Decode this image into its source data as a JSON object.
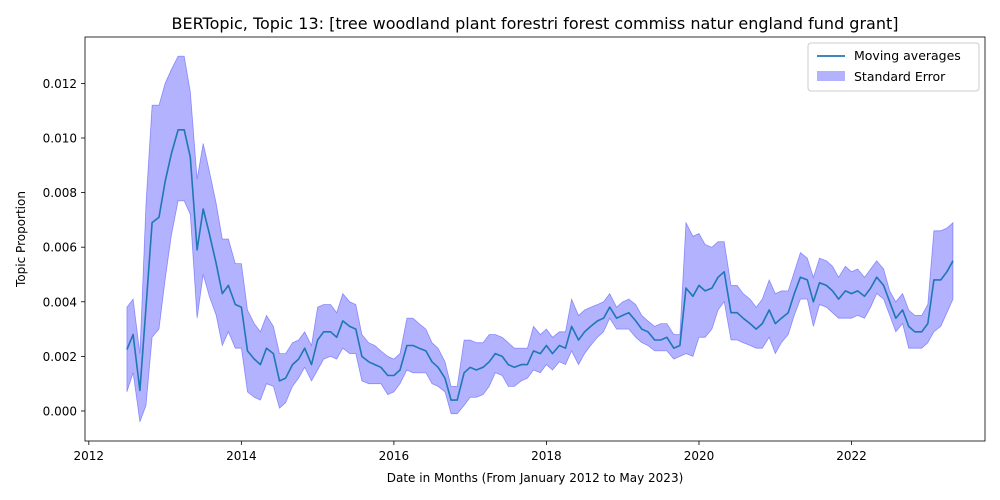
{
  "chart_data": {
    "type": "line",
    "title": "BERTopic, Topic 13: [tree woodland plant forestri forest commiss natur england fund grant]",
    "xlabel": "Date in Months (From January 2012 to May 2023)",
    "ylabel": "Topic Proportion",
    "xlim": [
      2011.95,
      2023.75
    ],
    "ylim": [
      -0.0011,
      0.0137
    ],
    "x_ticks": [
      2012,
      2014,
      2016,
      2018,
      2020,
      2022
    ],
    "x_tick_labels": [
      "2012",
      "2014",
      "2016",
      "2018",
      "2020",
      "2022"
    ],
    "y_ticks": [
      0.0,
      0.002,
      0.004,
      0.006,
      0.008,
      0.01,
      0.012
    ],
    "y_tick_labels": [
      "0.000",
      "0.002",
      "0.004",
      "0.006",
      "0.008",
      "0.010",
      "0.012"
    ],
    "legend": {
      "placement": "top-right",
      "entries": [
        "Moving averages",
        "Standard Error"
      ]
    },
    "colors": {
      "line": "#1f77b4",
      "band": "#0000ff",
      "band_alpha": 0.3
    },
    "x": [
      2012.5,
      2012.58,
      2012.67,
      2012.75,
      2012.83,
      2012.92,
      2013.0,
      2013.08,
      2013.17,
      2013.25,
      2013.33,
      2013.42,
      2013.5,
      2013.58,
      2013.67,
      2013.75,
      2013.83,
      2013.92,
      2014.0,
      2014.08,
      2014.17,
      2014.25,
      2014.33,
      2014.42,
      2014.5,
      2014.58,
      2014.67,
      2014.75,
      2014.83,
      2014.92,
      2015.0,
      2015.08,
      2015.17,
      2015.25,
      2015.33,
      2015.42,
      2015.5,
      2015.58,
      2015.67,
      2015.75,
      2015.83,
      2015.92,
      2016.0,
      2016.08,
      2016.17,
      2016.25,
      2016.33,
      2016.42,
      2016.5,
      2016.58,
      2016.67,
      2016.75,
      2016.83,
      2016.92,
      2017.0,
      2017.08,
      2017.17,
      2017.25,
      2017.33,
      2017.42,
      2017.5,
      2017.58,
      2017.67,
      2017.75,
      2017.83,
      2017.92,
      2018.0,
      2018.08,
      2018.17,
      2018.25,
      2018.33,
      2018.42,
      2018.5,
      2018.58,
      2018.67,
      2018.75,
      2018.83,
      2018.92,
      2019.0,
      2019.08,
      2019.17,
      2019.25,
      2019.33,
      2019.42,
      2019.5,
      2019.58,
      2019.67,
      2019.75,
      2019.83,
      2019.92,
      2020.0,
      2020.08,
      2020.17,
      2020.25,
      2020.33,
      2020.42,
      2020.5,
      2020.58,
      2020.67,
      2020.75,
      2020.83,
      2020.92,
      2021.0,
      2021.08,
      2021.17,
      2021.25,
      2021.33,
      2021.42,
      2021.5,
      2021.58,
      2021.67,
      2021.75,
      2021.83,
      2021.92,
      2022.0,
      2022.08,
      2022.17,
      2022.25,
      2022.33,
      2022.42,
      2022.5,
      2022.58,
      2022.67,
      2022.75,
      2022.83,
      2022.92,
      2023.0,
      2023.08,
      2023.17,
      2023.25,
      2023.33
    ],
    "series": [
      {
        "name": "Moving averages",
        "values": [
          0.00225,
          0.0028,
          0.00075,
          0.0038,
          0.0069,
          0.0071,
          0.0084,
          0.0094,
          0.0103,
          0.0103,
          0.0093,
          0.0059,
          0.0074,
          0.0065,
          0.0054,
          0.0043,
          0.0046,
          0.0039,
          0.0038,
          0.0022,
          0.0019,
          0.0017,
          0.0023,
          0.0021,
          0.0011,
          0.0012,
          0.0017,
          0.0019,
          0.0023,
          0.0017,
          0.0026,
          0.0029,
          0.0029,
          0.0027,
          0.0033,
          0.0031,
          0.003,
          0.002,
          0.0018,
          0.0017,
          0.0016,
          0.0013,
          0.0013,
          0.0015,
          0.0024,
          0.0024,
          0.0023,
          0.0022,
          0.0018,
          0.0016,
          0.0012,
          0.0004,
          0.0004,
          0.0014,
          0.0016,
          0.0015,
          0.0016,
          0.0018,
          0.0021,
          0.002,
          0.0017,
          0.0016,
          0.0017,
          0.0017,
          0.0022,
          0.0021,
          0.0024,
          0.0021,
          0.0024,
          0.0023,
          0.0031,
          0.0026,
          0.0029,
          0.0031,
          0.0033,
          0.0034,
          0.0038,
          0.0034,
          0.0035,
          0.0036,
          0.0033,
          0.003,
          0.0029,
          0.0026,
          0.0026,
          0.0027,
          0.0023,
          0.0024,
          0.0045,
          0.0042,
          0.0046,
          0.0044,
          0.0045,
          0.0049,
          0.0051,
          0.0036,
          0.0036,
          0.0034,
          0.0032,
          0.003,
          0.0032,
          0.0037,
          0.0032,
          0.0034,
          0.0036,
          0.0043,
          0.0049,
          0.0048,
          0.004,
          0.0047,
          0.0046,
          0.0044,
          0.0041,
          0.0044,
          0.0043,
          0.0044,
          0.0042,
          0.0045,
          0.0049,
          0.0046,
          0.004,
          0.0034,
          0.0037,
          0.0031,
          0.0029,
          0.0029,
          0.0032,
          0.0048,
          0.0048,
          0.0051,
          0.0055
        ]
      },
      {
        "name": "Standard Error",
        "lower": [
          0.0007,
          0.0014,
          -0.0004,
          0.0002,
          0.0027,
          0.003,
          0.0048,
          0.0064,
          0.0077,
          0.0077,
          0.0072,
          0.0034,
          0.005,
          0.0042,
          0.0035,
          0.0024,
          0.0029,
          0.0023,
          0.0023,
          0.0007,
          0.0005,
          0.0004,
          0.001,
          0.0009,
          0.0001,
          0.0003,
          0.0009,
          0.0012,
          0.0016,
          0.0011,
          0.0015,
          0.0019,
          0.002,
          0.0019,
          0.0023,
          0.0021,
          0.0021,
          0.0011,
          0.001,
          0.001,
          0.001,
          0.0006,
          0.0007,
          0.001,
          0.0015,
          0.0014,
          0.0014,
          0.0014,
          0.001,
          0.0009,
          0.0007,
          -0.0001,
          -0.0001,
          0.0002,
          0.0005,
          0.0005,
          0.0006,
          0.0009,
          0.0014,
          0.0013,
          0.0009,
          0.0009,
          0.0011,
          0.0012,
          0.0015,
          0.0014,
          0.0017,
          0.0015,
          0.0018,
          0.0017,
          0.0022,
          0.0017,
          0.0021,
          0.0024,
          0.0027,
          0.0029,
          0.0034,
          0.003,
          0.003,
          0.003,
          0.0027,
          0.0025,
          0.0024,
          0.0022,
          0.0022,
          0.0022,
          0.0019,
          0.002,
          0.0021,
          0.002,
          0.0027,
          0.0027,
          0.003,
          0.0037,
          0.004,
          0.0026,
          0.0026,
          0.0025,
          0.0024,
          0.0023,
          0.0023,
          0.0027,
          0.0021,
          0.0025,
          0.0028,
          0.0035,
          0.0041,
          0.0041,
          0.0031,
          0.0039,
          0.0038,
          0.0036,
          0.0034,
          0.0034,
          0.0034,
          0.0035,
          0.0034,
          0.0038,
          0.0043,
          0.0041,
          0.0035,
          0.0029,
          0.0032,
          0.0023,
          0.0023,
          0.0023,
          0.0025,
          0.0029,
          0.0031,
          0.0036,
          0.0041
        ],
        "upper": [
          0.0038,
          0.0041,
          0.0021,
          0.0076,
          0.0112,
          0.0112,
          0.012,
          0.0125,
          0.013,
          0.013,
          0.0117,
          0.0085,
          0.0098,
          0.0088,
          0.0076,
          0.0063,
          0.0063,
          0.0054,
          0.0054,
          0.0037,
          0.0032,
          0.0029,
          0.0035,
          0.0031,
          0.0021,
          0.0021,
          0.0025,
          0.0026,
          0.0029,
          0.0024,
          0.0038,
          0.0039,
          0.0039,
          0.0036,
          0.0043,
          0.004,
          0.0039,
          0.0028,
          0.0025,
          0.0024,
          0.0022,
          0.002,
          0.0019,
          0.0021,
          0.0034,
          0.0034,
          0.0032,
          0.003,
          0.0025,
          0.0023,
          0.0018,
          0.0009,
          0.0009,
          0.0026,
          0.0026,
          0.0025,
          0.0025,
          0.0028,
          0.0028,
          0.0027,
          0.0025,
          0.0023,
          0.0023,
          0.0023,
          0.0031,
          0.0028,
          0.003,
          0.0027,
          0.0029,
          0.0029,
          0.0041,
          0.0035,
          0.0037,
          0.0038,
          0.0039,
          0.004,
          0.0043,
          0.0038,
          0.004,
          0.0041,
          0.0039,
          0.0035,
          0.0033,
          0.0031,
          0.0032,
          0.0032,
          0.0028,
          0.0028,
          0.0069,
          0.0064,
          0.0065,
          0.0061,
          0.006,
          0.0062,
          0.0062,
          0.0046,
          0.0046,
          0.0043,
          0.0041,
          0.0038,
          0.0041,
          0.0048,
          0.0043,
          0.0044,
          0.0044,
          0.0051,
          0.0058,
          0.0056,
          0.0049,
          0.0056,
          0.0055,
          0.0053,
          0.0049,
          0.0053,
          0.0051,
          0.0052,
          0.0049,
          0.0052,
          0.0055,
          0.0052,
          0.0044,
          0.004,
          0.0043,
          0.0037,
          0.0035,
          0.0035,
          0.0039,
          0.0066,
          0.0066,
          0.0067,
          0.0069
        ]
      }
    ]
  }
}
